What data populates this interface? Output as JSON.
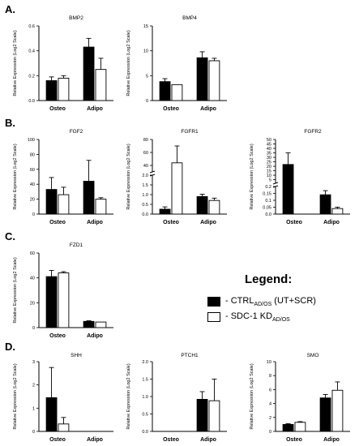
{
  "panels": {
    "A": "A.",
    "B": "B.",
    "C": "C.",
    "D": "D."
  },
  "legend": {
    "title": "Legend:",
    "items": [
      {
        "prefix": "- CTRL",
        "sub": "AD/OS",
        "suffix": " (UT+SCR)",
        "color": "#000000"
      },
      {
        "prefix": "- SDC-1 KD",
        "sub": "AD/OS",
        "suffix": "",
        "color": "#ffffff"
      }
    ]
  },
  "colors": {
    "ctrl": "#000000",
    "kd": "#ffffff",
    "axis": "#000000"
  },
  "chart_data": [
    {
      "id": "bmp2",
      "type": "bar",
      "title": "BMP2",
      "ylabel": "Relative Expression (Log2 Scale)",
      "categories": [
        "Osteo",
        "Adipo"
      ],
      "yscale": "linear",
      "ylim": [
        0,
        0.6
      ],
      "yticks": [
        0.0,
        0.2,
        0.4,
        0.6
      ],
      "tick_labels": [
        "0.0",
        "0.2",
        "0.4",
        "0.6"
      ],
      "series": [
        {
          "values": [
            0.16,
            0.43
          ],
          "errors": [
            0.03,
            0.07
          ]
        },
        {
          "values": [
            0.18,
            0.25
          ],
          "errors": [
            0.02,
            0.09
          ]
        }
      ]
    },
    {
      "id": "bmp4",
      "type": "bar",
      "title": "BMP4",
      "ylabel": "Relative Expression (Log2 Scale)",
      "categories": [
        "Osteo",
        "Adipo"
      ],
      "yscale": "linear",
      "ylim": [
        0,
        15
      ],
      "yticks": [
        0,
        5,
        10,
        15
      ],
      "tick_labels": [
        "0",
        "5",
        "10",
        "15"
      ],
      "series": [
        {
          "values": [
            3.8,
            8.6
          ],
          "errors": [
            0.6,
            1.2
          ]
        },
        {
          "values": [
            3.2,
            8.0
          ],
          "errors": [
            0,
            0.5
          ]
        }
      ]
    },
    {
      "id": "fgf2",
      "type": "bar",
      "title": "FGF2",
      "ylabel": "Relative Expression (Log2 Scale)",
      "categories": [
        "Osteo",
        "Adipo"
      ],
      "yscale": "linear",
      "ylim": [
        0,
        100
      ],
      "yticks": [
        0,
        20,
        40,
        60,
        80,
        100
      ],
      "tick_labels": [
        "0",
        "20",
        "40",
        "60",
        "80",
        "100"
      ],
      "series": [
        {
          "values": [
            33,
            44
          ],
          "errors": [
            16,
            28
          ]
        },
        {
          "values": [
            26,
            20
          ],
          "errors": [
            10,
            2
          ]
        }
      ]
    },
    {
      "id": "fgfr1",
      "type": "bar",
      "title": "FGFR1",
      "ylabel": "Relative Expression (Log2 Scale)",
      "categories": [
        "Osteo",
        "Adipo"
      ],
      "yscale": "broken",
      "lower_range": [
        0,
        2
      ],
      "upper_range": [
        30,
        80
      ],
      "yticks": [
        0,
        0.5,
        1.0,
        1.5,
        2.0,
        40,
        60,
        80
      ],
      "tick_labels": [
        "0.0",
        "0.5",
        "1.0",
        "1.5",
        "2.0",
        "40",
        "60",
        "80"
      ],
      "series": [
        {
          "values": [
            0.25,
            0.9
          ],
          "errors": [
            0.12,
            0.12
          ]
        },
        {
          "values": [
            44,
            0.7
          ],
          "errors": [
            26,
            0.12
          ]
        }
      ]
    },
    {
      "id": "fgfr2",
      "type": "bar",
      "title": "FGFR2",
      "ylabel": "Relative Expression (Log2 Scale)",
      "categories": [
        "Osteo",
        "Adipo"
      ],
      "yscale": "broken",
      "lower_range": [
        0,
        0.2
      ],
      "upper_range": [
        1,
        50
      ],
      "yticks": [
        0,
        0.05,
        0.1,
        0.15,
        0.2,
        5,
        10,
        15,
        20,
        25,
        30,
        35,
        40,
        45,
        50
      ],
      "tick_labels": [
        "0.0",
        "0.05",
        "0.1",
        "0.15",
        "0.2",
        "5",
        "10",
        "15",
        "20",
        "25",
        "30",
        "35",
        "40",
        "45",
        "50"
      ],
      "series": [
        {
          "values": [
            22,
            0.14
          ],
          "errors": [
            13,
            0.03
          ]
        },
        {
          "values": [
            0,
            0.04
          ],
          "errors": [
            0,
            0.01
          ]
        }
      ]
    },
    {
      "id": "fzd1",
      "type": "bar",
      "title": "FZD1",
      "ylabel": "Relative Expression (Log2 Scale)",
      "categories": [
        "Osteo",
        "Adipo"
      ],
      "yscale": "linear",
      "ylim": [
        0,
        60
      ],
      "yticks": [
        0,
        20,
        40,
        60
      ],
      "tick_labels": [
        "0",
        "20",
        "40",
        "60"
      ],
      "series": [
        {
          "values": [
            41,
            5
          ],
          "errors": [
            5,
            0.5
          ]
        },
        {
          "values": [
            44,
            4.5
          ],
          "errors": [
            1,
            0
          ]
        }
      ]
    },
    {
      "id": "shh",
      "type": "bar",
      "title": "SHH",
      "ylabel": "Relative Expression (Log2 Scale)",
      "categories": [
        "Osteo",
        "Adipo"
      ],
      "yscale": "linear",
      "ylim": [
        0,
        3
      ],
      "yticks": [
        0,
        1,
        2,
        3
      ],
      "tick_labels": [
        "0",
        "1",
        "2",
        "3"
      ],
      "series": [
        {
          "values": [
            1.45,
            0
          ],
          "errors": [
            1.3,
            0
          ]
        },
        {
          "values": [
            0.32,
            0
          ],
          "errors": [
            0.28,
            0
          ]
        }
      ]
    },
    {
      "id": "ptch1",
      "type": "bar",
      "title": "PTCH1",
      "ylabel": "Relative Expression (Log2 Scale)",
      "categories": [
        "Osteo",
        "Adipo"
      ],
      "yscale": "linear",
      "ylim": [
        0,
        2
      ],
      "yticks": [
        0.0,
        0.5,
        1.0,
        1.5,
        2.0
      ],
      "tick_labels": [
        "0.0",
        "0.5",
        "1.0",
        "1.5",
        "2.0"
      ],
      "series": [
        {
          "values": [
            0,
            0.92
          ],
          "errors": [
            0,
            0.22
          ]
        },
        {
          "values": [
            0,
            0.88
          ],
          "errors": [
            0,
            0.62
          ]
        }
      ]
    },
    {
      "id": "smo",
      "type": "bar",
      "title": "SMO",
      "ylabel": "Relative Expression (Log2 Scale)",
      "categories": [
        "Osteo",
        "Adipo"
      ],
      "yscale": "linear",
      "ylim": [
        0,
        10
      ],
      "yticks": [
        0,
        2,
        4,
        6,
        8,
        10
      ],
      "tick_labels": [
        "0",
        "2",
        "4",
        "6",
        "8",
        "10"
      ],
      "series": [
        {
          "values": [
            1.0,
            4.8
          ],
          "errors": [
            0.1,
            0.5
          ]
        },
        {
          "values": [
            1.3,
            5.9
          ],
          "errors": [
            0.1,
            1.2
          ]
        }
      ]
    }
  ]
}
